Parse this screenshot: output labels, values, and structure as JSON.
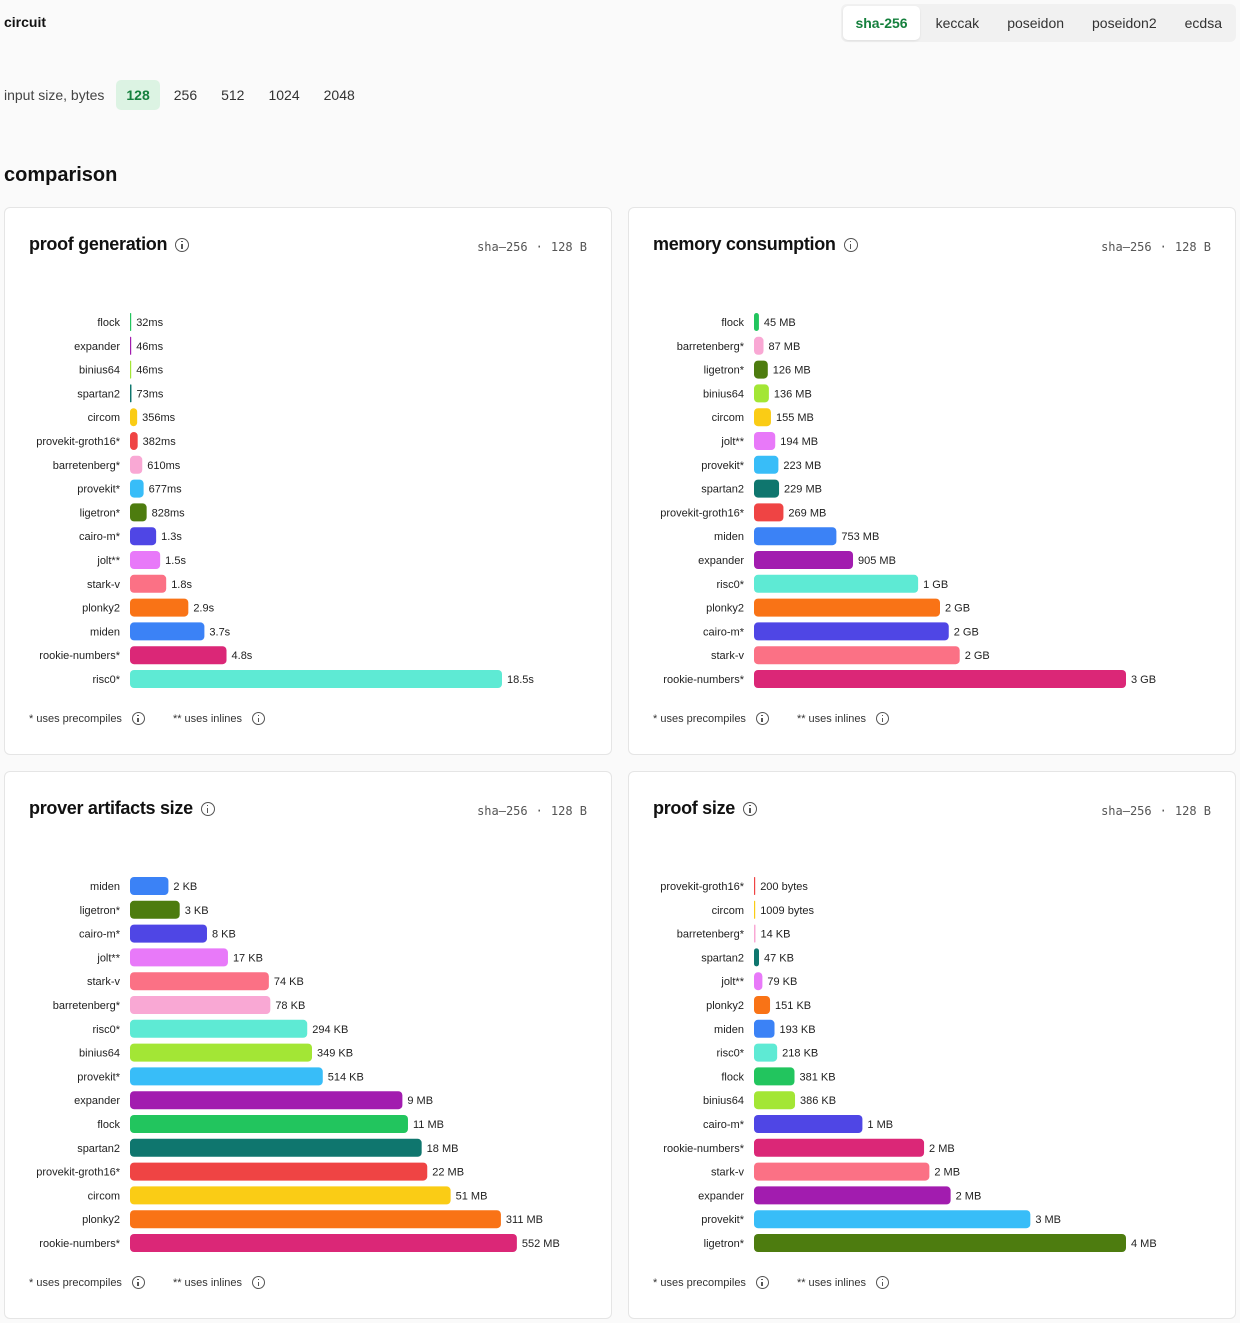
{
  "header": {
    "circuit_label": "circuit",
    "circuit_tabs": [
      "sha-256",
      "keccak",
      "poseidon",
      "poseidon2",
      "ecdsa"
    ],
    "active_circuit": "sha-256",
    "input_size_label": "input size, bytes",
    "input_sizes": [
      "128",
      "256",
      "512",
      "1024",
      "2048"
    ],
    "active_size": "128"
  },
  "section_title": "comparison",
  "footnotes": {
    "precompiles": "* uses precompiles",
    "inlines": "** uses inlines"
  },
  "colors": {
    "flock": "#22c55e",
    "expander": "#a21caf",
    "binius64": "#a3e635",
    "spartan2": "#0f766e",
    "circom": "#facc15",
    "provekit-groth16": "#ef4444",
    "barretenberg": "#f9a8d4",
    "provekit": "#38bdf8",
    "ligetron": "#4d7c0f",
    "cairo-m": "#4f46e5",
    "jolt": "#e879f9",
    "stark-v": "#fb7185",
    "plonky2": "#f97316",
    "miden": "#3b82f6",
    "rookie-numbers": "#db2777",
    "risc0": "#5eead4"
  },
  "chart_data": [
    {
      "type": "bar",
      "title": "proof generation",
      "meta": {
        "circuit": "sha-256",
        "size": "128 B"
      },
      "unit": "s",
      "categories": [
        "flock",
        "expander",
        "binius64",
        "spartan2",
        "circom",
        "provekit-groth16",
        "barretenberg",
        "provekit",
        "ligetron",
        "cairo-m",
        "jolt",
        "stark-v",
        "plonky2",
        "miden",
        "rookie-numbers",
        "risc0"
      ],
      "labels": [
        "flock",
        "expander",
        "binius64",
        "spartan2",
        "circom",
        "provekit-groth16*",
        "barretenberg*",
        "provekit*",
        "ligetron*",
        "cairo-m*",
        "jolt**",
        "stark-v",
        "plonky2",
        "miden",
        "rookie-numbers*",
        "risc0*"
      ],
      "values": [
        0.032,
        0.046,
        0.046,
        0.073,
        0.356,
        0.382,
        0.61,
        0.677,
        0.828,
        1.3,
        1.5,
        1.8,
        2.9,
        3.7,
        4.8,
        18.5
      ],
      "value_labels": [
        "32ms",
        "46ms",
        "46ms",
        "73ms",
        "356ms",
        "382ms",
        "610ms",
        "677ms",
        "828ms",
        "1.3s",
        "1.5s",
        "1.8s",
        "2.9s",
        "3.7s",
        "4.8s",
        "18.5s"
      ]
    },
    {
      "type": "bar",
      "title": "memory consumption",
      "meta": {
        "circuit": "sha-256",
        "size": "128 B"
      },
      "unit": "MB",
      "categories": [
        "flock",
        "barretenberg",
        "ligetron",
        "binius64",
        "circom",
        "jolt",
        "provekit",
        "spartan2",
        "provekit-groth16",
        "miden",
        "expander",
        "risc0",
        "plonky2",
        "cairo-m",
        "stark-v",
        "rookie-numbers"
      ],
      "labels": [
        "flock",
        "barretenberg*",
        "ligetron*",
        "binius64",
        "circom",
        "jolt**",
        "provekit*",
        "spartan2",
        "provekit-groth16*",
        "miden",
        "expander",
        "risc0*",
        "plonky2",
        "cairo-m*",
        "stark-v",
        "rookie-numbers*"
      ],
      "values": [
        45,
        87,
        126,
        136,
        155,
        194,
        223,
        229,
        269,
        753,
        905,
        1500,
        1700,
        1780,
        1880,
        3400
      ],
      "value_labels": [
        "45 MB",
        "87 MB",
        "126 MB",
        "136 MB",
        "155 MB",
        "194 MB",
        "223 MB",
        "229 MB",
        "269 MB",
        "753 MB",
        "905 MB",
        "1 GB",
        "2 GB",
        "2 GB",
        "2 GB",
        "3 GB"
      ]
    },
    {
      "type": "bar",
      "title": "prover artifacts size",
      "meta": {
        "circuit": "sha-256",
        "size": "128 B"
      },
      "scale": "log",
      "unit": "KB",
      "categories": [
        "miden",
        "ligetron",
        "cairo-m",
        "jolt",
        "stark-v",
        "barretenberg",
        "risc0",
        "binius64",
        "provekit",
        "expander",
        "flock",
        "spartan2",
        "provekit-groth16",
        "circom",
        "plonky2",
        "rookie-numbers"
      ],
      "labels": [
        "miden",
        "ligetron*",
        "cairo-m*",
        "jolt**",
        "stark-v",
        "barretenberg*",
        "risc0*",
        "binius64",
        "provekit*",
        "expander",
        "flock",
        "spartan2",
        "provekit-groth16*",
        "circom",
        "plonky2",
        "rookie-numbers*"
      ],
      "values": [
        2,
        3,
        8,
        17,
        74,
        78,
        294,
        349,
        514,
        9000,
        11000,
        18000,
        22000,
        51000,
        311000,
        552000
      ],
      "value_labels": [
        "2 KB",
        "3 KB",
        "8 KB",
        "17 KB",
        "74 KB",
        "78 KB",
        "294 KB",
        "349 KB",
        "514 KB",
        "9 MB",
        "11 MB",
        "18 MB",
        "22 MB",
        "51 MB",
        "311 MB",
        "552 MB"
      ]
    },
    {
      "type": "bar",
      "title": "proof size",
      "meta": {
        "circuit": "sha-256",
        "size": "128 B"
      },
      "unit": "KB",
      "categories": [
        "provekit-groth16",
        "circom",
        "barretenberg",
        "spartan2",
        "jolt",
        "plonky2",
        "miden",
        "risc0",
        "flock",
        "binius64",
        "cairo-m",
        "rookie-numbers",
        "stark-v",
        "expander",
        "provekit",
        "ligetron"
      ],
      "labels": [
        "provekit-groth16*",
        "circom",
        "barretenberg*",
        "spartan2",
        "jolt**",
        "plonky2",
        "miden",
        "risc0*",
        "flock",
        "binius64",
        "cairo-m*",
        "rookie-numbers*",
        "stark-v",
        "expander",
        "provekit*",
        "ligetron*"
      ],
      "values": [
        0.2,
        1.009,
        14,
        47,
        79,
        151,
        193,
        218,
        381,
        386,
        1020,
        1600,
        1650,
        1850,
        2600,
        3500
      ],
      "value_labels": [
        "200 bytes",
        "1009 bytes",
        "14 KB",
        "47 KB",
        "79 KB",
        "151 KB",
        "193 KB",
        "218 KB",
        "381 KB",
        "386 KB",
        "1 MB",
        "2 MB",
        "2 MB",
        "2 MB",
        "3 MB",
        "4 MB"
      ]
    }
  ]
}
